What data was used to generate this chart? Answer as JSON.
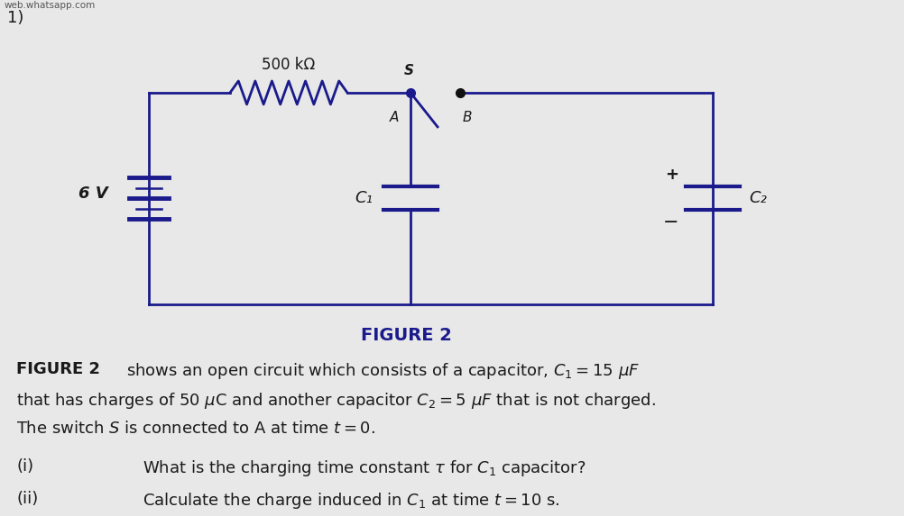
{
  "background_color": "#e8e8e8",
  "watermark": "web.whatsapp.com",
  "label_1": "1)",
  "figure_label": "FIGURE 2",
  "resistor_label": "500 kΩ",
  "voltage_label": "6 V",
  "c1_label": "C₁",
  "c2_label": "C₂",
  "switch_label_A": "A",
  "switch_label_B": "B",
  "switch_label_S": "S",
  "circuit_color": "#1a1a8c",
  "text_color": "#1a1a1a",
  "figure2_color": "#1a1a8c",
  "figure_label_fontsize": 14,
  "para_fontsize": 13,
  "q_fontsize": 13,
  "circuit_lw": 2.0,
  "plate_lw": 3.0,
  "bat_lw_thick": 3.5,
  "bat_lw_thin": 1.8
}
